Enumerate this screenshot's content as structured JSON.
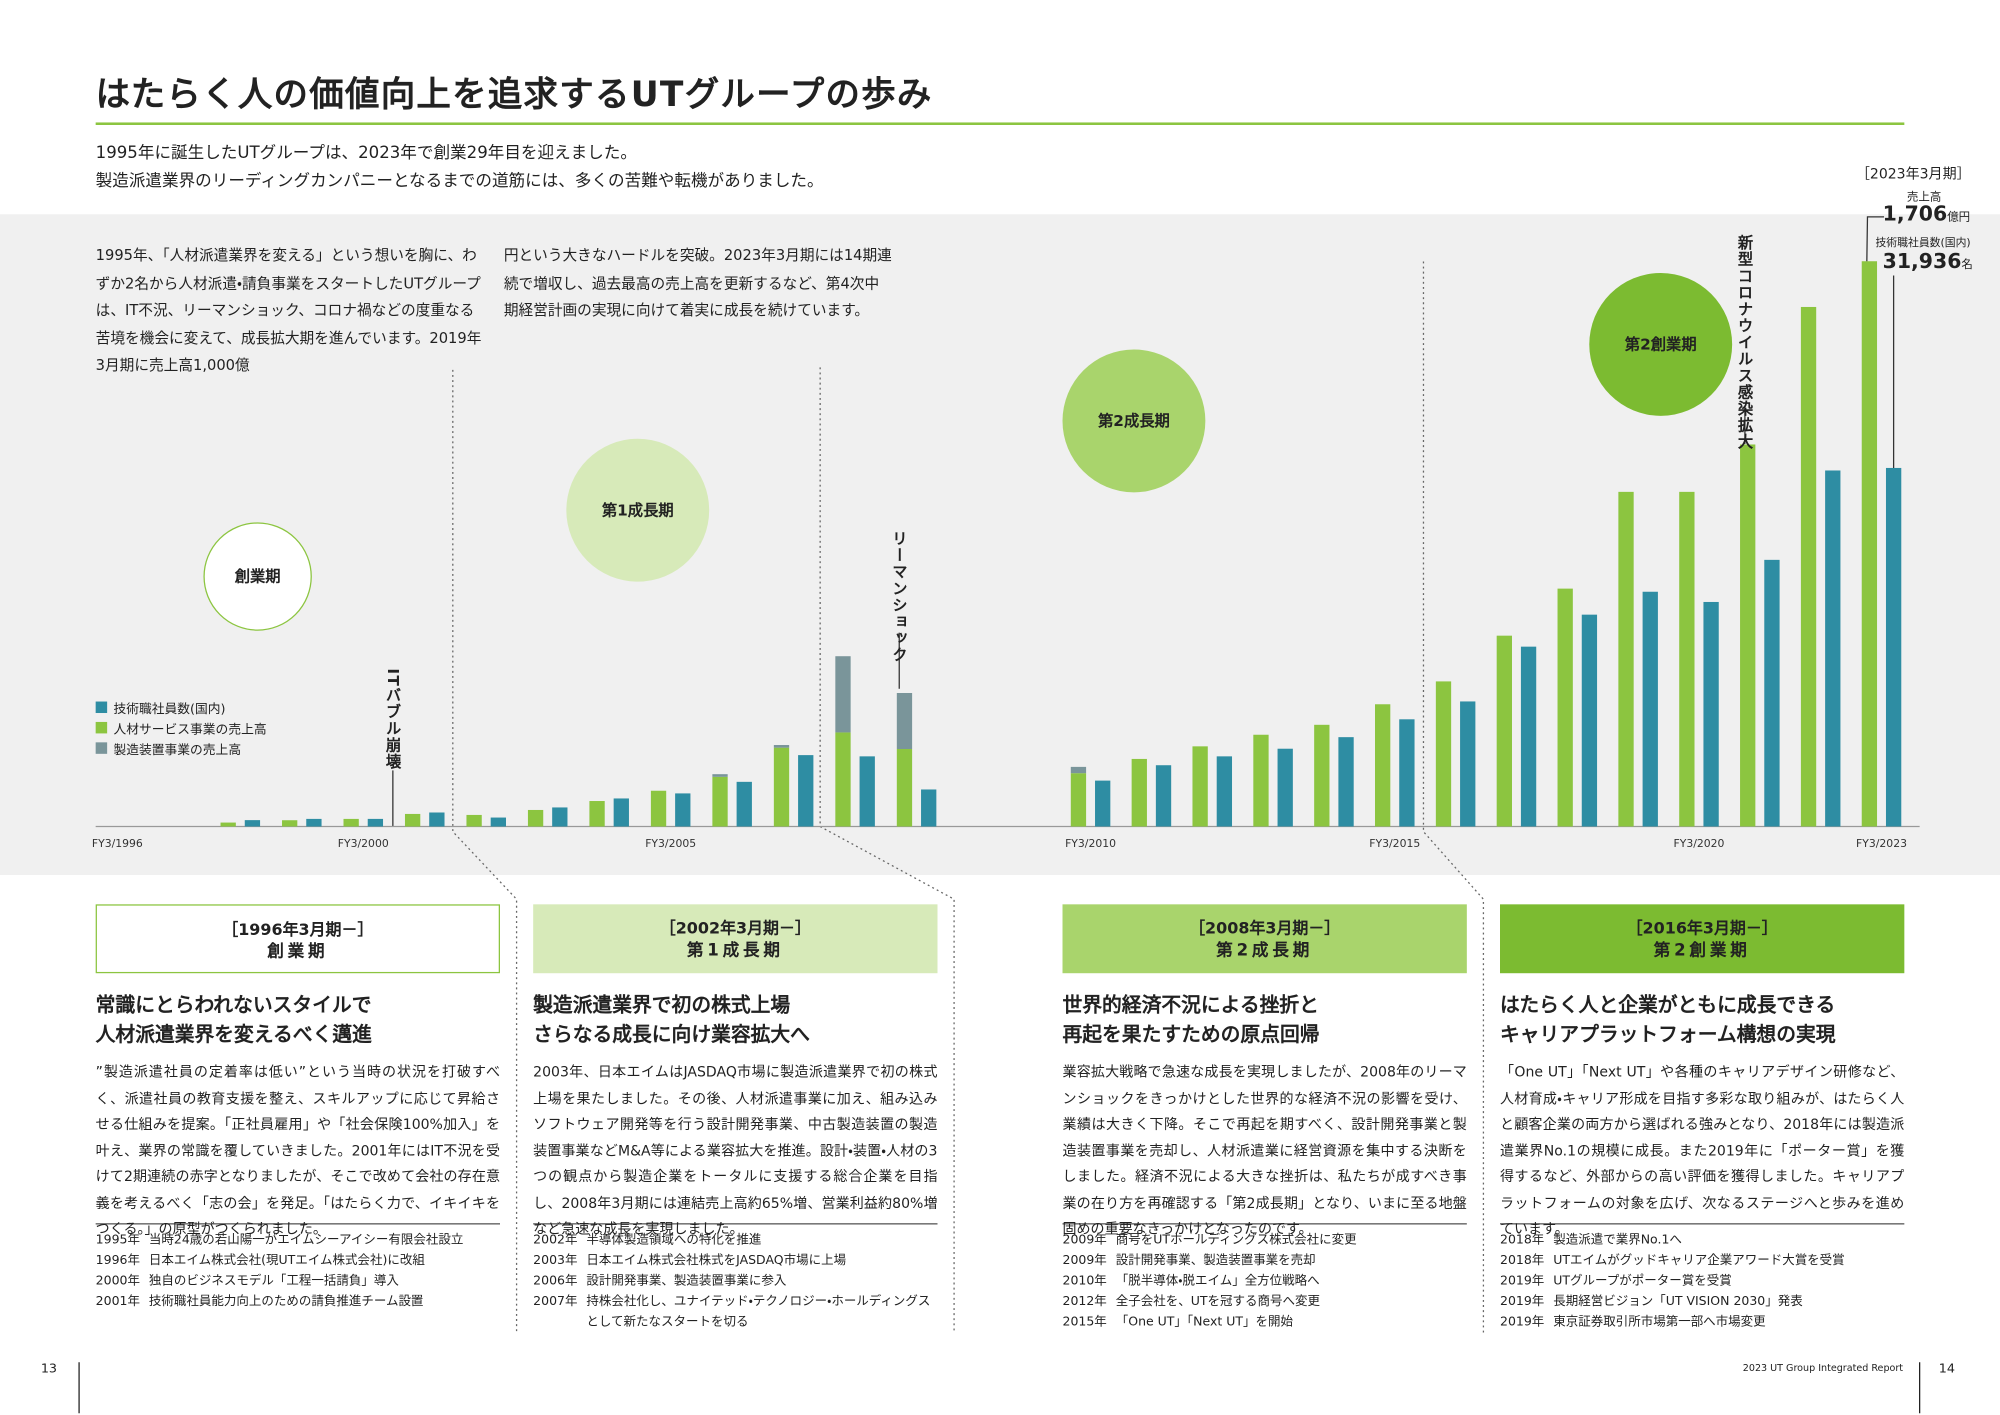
{
  "header": {
    "title": "はたらく人の価値向上を追求するUTグループの歩み",
    "intro": [
      "1995年に誕生したUTグループは、2023年で創業29年目を迎えました。",
      "製造派遣業界のリーディングカンパニーとなるまでの道筋には、多くの苦難や転機がありました。"
    ]
  },
  "chart_data": {
    "type": "bar",
    "description": [
      "1995年、「人材派遣業界を変える」という想いを胸に、わずか2名から人材派遣・請負事業をスタートしたUTグループは、IT不況、リーマンショック、コロナ禍などの度重なる苦境を機会に変えて、成長拡大期を進んでいます。2019年3月期に売上高1,000億",
      "円という大きなハードルを突破。2023年3月期には14期連続で増収し、過去最高の売上高を更新するなど、第4次中期経営計画の実現に向けて着実に成長を続けています。"
    ],
    "callout": {
      "period": "［2023年3月期］",
      "sales_label": "売上高",
      "sales": "1,706",
      "sales_unit": "億円",
      "staff_label": "技術職社員数(国内)",
      "staff": "31,936",
      "staff_unit": "名"
    },
    "phases": [
      "創業期",
      "第1成長期",
      "第2成長期",
      "第2創業期"
    ],
    "events": [
      "ITバブル崩壊",
      "リーマンショック",
      "新型コロナウイルス感染拡大"
    ],
    "categories": [
      "FY3/1996",
      null,
      null,
      null,
      "FY3/2000",
      null,
      null,
      null,
      null,
      "FY3/2005",
      null,
      null,
      null,
      null,
      "FY3/2010",
      null,
      null,
      null,
      null,
      "FY3/2015",
      null,
      null,
      null,
      null,
      "FY3/2020",
      null,
      null,
      "FY3/2023"
    ],
    "ylim": [
      0,
      1840
    ],
    "y2lim": [
      0,
      54300
    ],
    "series": [
      {
        "name": "技術職社員数(国内)",
        "color": "#2e8da3",
        "axis": "y2",
        "values": [
          null,
          null,
          570,
          680,
          680,
          1250,
          800,
          1700,
          2500,
          2950,
          3980,
          6360,
          6250,
          3300,
          4090,
          5460,
          6250,
          6930,
          7960,
          9550,
          11140,
          16020,
          18870,
          20910,
          20000,
          23750,
          31710,
          31936
        ]
      },
      {
        "name": "人材サービス事業の売上高",
        "color": "#8cc540",
        "values": [
          null,
          null,
          12,
          19,
          23,
          38,
          35,
          50,
          77,
          108,
          150,
          238,
          284,
          234,
          161,
          204,
          242,
          277,
          307,
          369,
          438,
          576,
          718,
          1010,
          1010,
          1153,
          1568,
          1706
        ]
      },
      {
        "name": "製造装置事業の売上高",
        "color": "#7a959a",
        "stacked_on": 1,
        "values": [
          null,
          null,
          null,
          null,
          null,
          null,
          null,
          null,
          null,
          null,
          8,
          8,
          230,
          169,
          19,
          null,
          null,
          null,
          null,
          null,
          null,
          null,
          null,
          null,
          null,
          null,
          null,
          null
        ]
      }
    ]
  },
  "columns": [
    {
      "period": "［1996年3月期－］",
      "name": "創業期",
      "heading": [
        "常識にとらわれないスタイルで",
        "人材派遣業界を変えるべく邁進"
      ],
      "body": "”製造派遣社員の定着率は低い”という当時の状況を打破すべく、派遣社員の教育支援を整え、スキルアップに応じて昇給させる仕組みを提案。「正社員雇用」や「社会保険100%加入」を叶え、業界の常識を覆していきました。2001年にはIT不況を受けて2期連続の赤字となりましたが、そこで改めて会社の存在意義を考えるべく「志の会」を発足。「はたらく力で、イキイキをつくる。」の原型がつくられました。",
      "history": [
        {
          "year": "1995年",
          "text": "当時24歳の若山陽一がエイムシーアイシー有限会社設立"
        },
        {
          "year": "1996年",
          "text": "日本エイム株式会社(現UTエイム株式会社)に改組"
        },
        {
          "year": "2000年",
          "text": "独自のビジネスモデル「工程一括請負」導入"
        },
        {
          "year": "2001年",
          "text": "技術職社員能力向上のための請負推進チーム設置"
        }
      ]
    },
    {
      "period": "［2002年3月期－］",
      "name": "第1成長期",
      "heading": [
        "製造派遣業界で初の株式上場",
        "さらなる成長に向け業容拡大へ"
      ],
      "body": "2003年、日本エイムはJASDAQ市場に製造派遣業界で初の株式上場を果たしました。その後、人材派遣事業に加え、組み込みソフトウェア開発等を行う設計開発事業、中古製造装置の製造装置事業などM&A等による業容拡大を推進。設計・装置・人材の3つの観点から製造企業をトータルに支援する総合企業を目指し、2008年3月期には連結売上高約65%増、営業利益約80%増など急速な成長を実現しました。",
      "history": [
        {
          "year": "2002年",
          "text": "半導体製造領域への特化を推進"
        },
        {
          "year": "2003年",
          "text": "日本エイム株式会社株式をJASDAQ市場に上場"
        },
        {
          "year": "2006年",
          "text": "設計開発事業、製造装置事業に参入"
        },
        {
          "year": "2007年",
          "text": "持株会社化し、ユナイテッド・テクノロジー・ホールディングスとして新たなスタートを切る"
        }
      ]
    },
    {
      "period": "［2008年3月期－］",
      "name": "第2成長期",
      "heading": [
        "世界的経済不況による挫折と",
        "再起を果たすための原点回帰"
      ],
      "body": "業容拡大戦略で急速な成長を実現しましたが、2008年のリーマンショックをきっかけとした世界的な経済不況の影響を受け、業績は大きく下降。そこで再起を期すべく、設計開発事業と製造装置事業を売却し、人材派遣業に経営資源を集中する決断をしました。経済不況による大きな挫折は、私たちが成すべき事業の在り方を再確認する「第2成長期」となり、いまに至る地盤固めの重要なきっかけとなったのです。",
      "history": [
        {
          "year": "2009年",
          "text": "商号をUTホールディングス株式会社に変更"
        },
        {
          "year": "2009年",
          "text": "設計開発事業、製造装置事業を売却"
        },
        {
          "year": "2010年",
          "text": "「脱半導体・脱エイム」全方位戦略へ"
        },
        {
          "year": "2012年",
          "text": "全子会社を、UTを冠する商号へ変更"
        },
        {
          "year": "2015年",
          "text": "「One UT」「Next UT」を開始"
        }
      ]
    },
    {
      "period": "［2016年3月期－］",
      "name": "第2創業期",
      "heading": [
        "はたらく人と企業がともに成長できる",
        "キャリアプラットフォーム構想の実現"
      ],
      "body": "「One UT」「Next UT」や各種のキャリアデザイン研修など、人材育成・キャリア形成を目指す多彩な取り組みが、はたらく人と顧客企業の両方から選ばれる強みとなり、2018年には製造派遣業界No.1の規模に成長。また2019年に「ポーター賞」を獲得するなど、外部からの高い評価を獲得しました。キャリアプラットフォームの対象を広げ、次なるステージへと歩みを進めています。",
      "history": [
        {
          "year": "2018年",
          "text": "製造派遣で業界No.1へ"
        },
        {
          "year": "2018年",
          "text": "UTエイムがグッドキャリア企業アワード大賞を受賞"
        },
        {
          "year": "2019年",
          "text": "UTグループがポーター賞を受賞"
        },
        {
          "year": "2019年",
          "text": "長期経営ビジョン「UT VISION 2030」発表"
        },
        {
          "year": "2019年",
          "text": "東京証券取引所市場第一部へ市場変更"
        }
      ]
    }
  ],
  "footer": {
    "left_page": "13",
    "report": "2023 UT Group Integrated Report",
    "right_page": "14"
  }
}
